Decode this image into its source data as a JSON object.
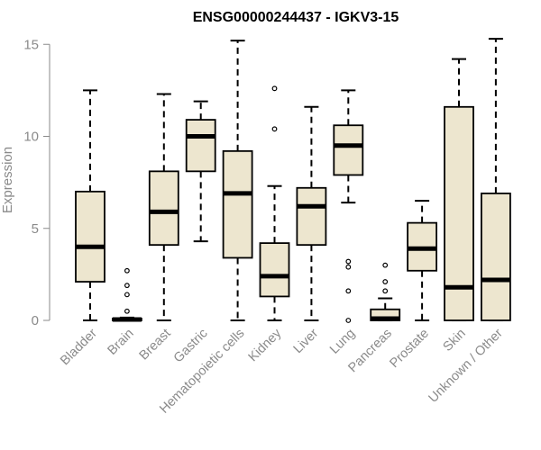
{
  "chart_data": {
    "type": "boxplot",
    "title": "ENSG00000244437 - IGKV3-15",
    "xlabel": "",
    "ylabel": "Expression",
    "ylim": [
      0,
      15.3
    ],
    "yticks": [
      0,
      5,
      10,
      15
    ],
    "grid": false,
    "legend": "none",
    "colors": {
      "box_fill": "#ede6cf",
      "stroke": "#000000",
      "axis_text": "#8a8a8a"
    },
    "categories": [
      "Bladder",
      "Brain",
      "Breast",
      "Gastric",
      "Hematopoietic cells",
      "Kidney",
      "Liver",
      "Lung",
      "Pancreas",
      "Prostate",
      "Skin",
      "Unknown / Other"
    ],
    "boxes": [
      {
        "category": "Bladder",
        "whisker_low": 0.0,
        "q1": 2.1,
        "median": 4.0,
        "q3": 7.0,
        "whisker_high": 12.5,
        "outliers": []
      },
      {
        "category": "Brain",
        "whisker_low": 0.0,
        "q1": 0.0,
        "median": 0.05,
        "q3": 0.1,
        "whisker_high": 0.15,
        "outliers": [
          0.5,
          1.4,
          1.9,
          2.7
        ]
      },
      {
        "category": "Breast",
        "whisker_low": 0.0,
        "q1": 4.1,
        "median": 5.9,
        "q3": 8.1,
        "whisker_high": 12.3,
        "outliers": []
      },
      {
        "category": "Gastric",
        "whisker_low": 4.3,
        "q1": 8.1,
        "median": 10.0,
        "q3": 10.9,
        "whisker_high": 11.9,
        "outliers": []
      },
      {
        "category": "Hematopoietic cells",
        "whisker_low": 0.0,
        "q1": 3.4,
        "median": 6.9,
        "q3": 9.2,
        "whisker_high": 15.2,
        "outliers": []
      },
      {
        "category": "Kidney",
        "whisker_low": 0.0,
        "q1": 1.3,
        "median": 2.4,
        "q3": 4.2,
        "whisker_high": 7.3,
        "outliers": [
          10.4,
          12.6
        ]
      },
      {
        "category": "Liver",
        "whisker_low": 0.0,
        "q1": 4.1,
        "median": 6.2,
        "q3": 7.2,
        "whisker_high": 11.6,
        "outliers": []
      },
      {
        "category": "Lung",
        "whisker_low": 6.4,
        "q1": 7.9,
        "median": 9.5,
        "q3": 10.6,
        "whisker_high": 12.5,
        "outliers": [
          0.0,
          1.6,
          2.9,
          3.2
        ]
      },
      {
        "category": "Pancreas",
        "whisker_low": 0.0,
        "q1": 0.0,
        "median": 0.1,
        "q3": 0.6,
        "whisker_high": 1.2,
        "outliers": [
          1.6,
          2.1,
          3.0
        ]
      },
      {
        "category": "Prostate",
        "whisker_low": 0.0,
        "q1": 2.7,
        "median": 3.9,
        "q3": 5.3,
        "whisker_high": 6.5,
        "outliers": []
      },
      {
        "category": "Skin",
        "whisker_low": 0.0,
        "q1": 0.0,
        "median": 1.8,
        "q3": 11.6,
        "whisker_high": 14.2,
        "outliers": []
      },
      {
        "category": "Unknown / Other",
        "whisker_low": 0.0,
        "q1": 0.0,
        "median": 2.2,
        "q3": 6.9,
        "whisker_high": 15.3,
        "outliers": []
      }
    ]
  }
}
